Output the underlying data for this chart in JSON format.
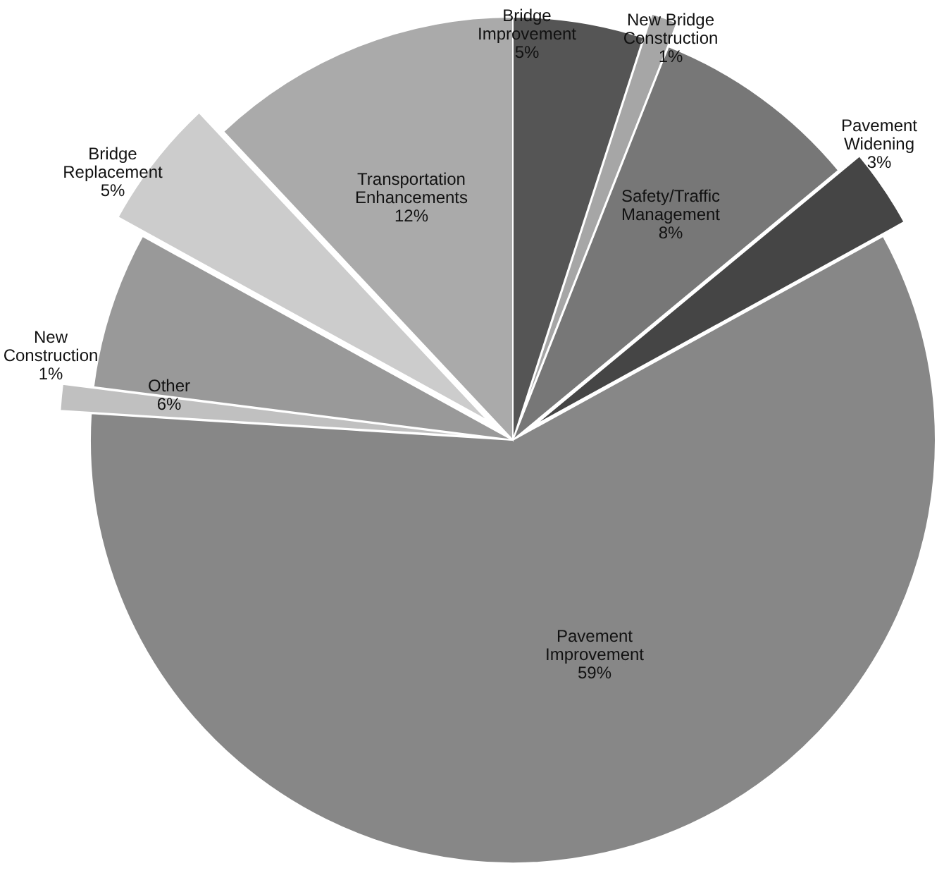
{
  "chart_data": {
    "type": "pie",
    "value_labels": [
      "5%",
      "1%",
      "8%",
      "3%",
      "59%",
      "1%",
      "6%",
      "5%",
      "12%"
    ],
    "categories": [
      "Bridge Improvement",
      "New Bridge Construction",
      "Safety/Traffic Management",
      "Pavement Widening",
      "Pavement Improvement",
      "New Construction",
      "Other",
      "Bridge Replacement",
      "Transportation Enhancements"
    ],
    "values": [
      5,
      1,
      8,
      3,
      59,
      1,
      6,
      5,
      12
    ],
    "colors": [
      "#555555",
      "#a6a6a6",
      "#777777",
      "#454545",
      "#878787",
      "#c0c0c0",
      "#999999",
      "#cccccc",
      "#aaaaaa"
    ]
  }
}
